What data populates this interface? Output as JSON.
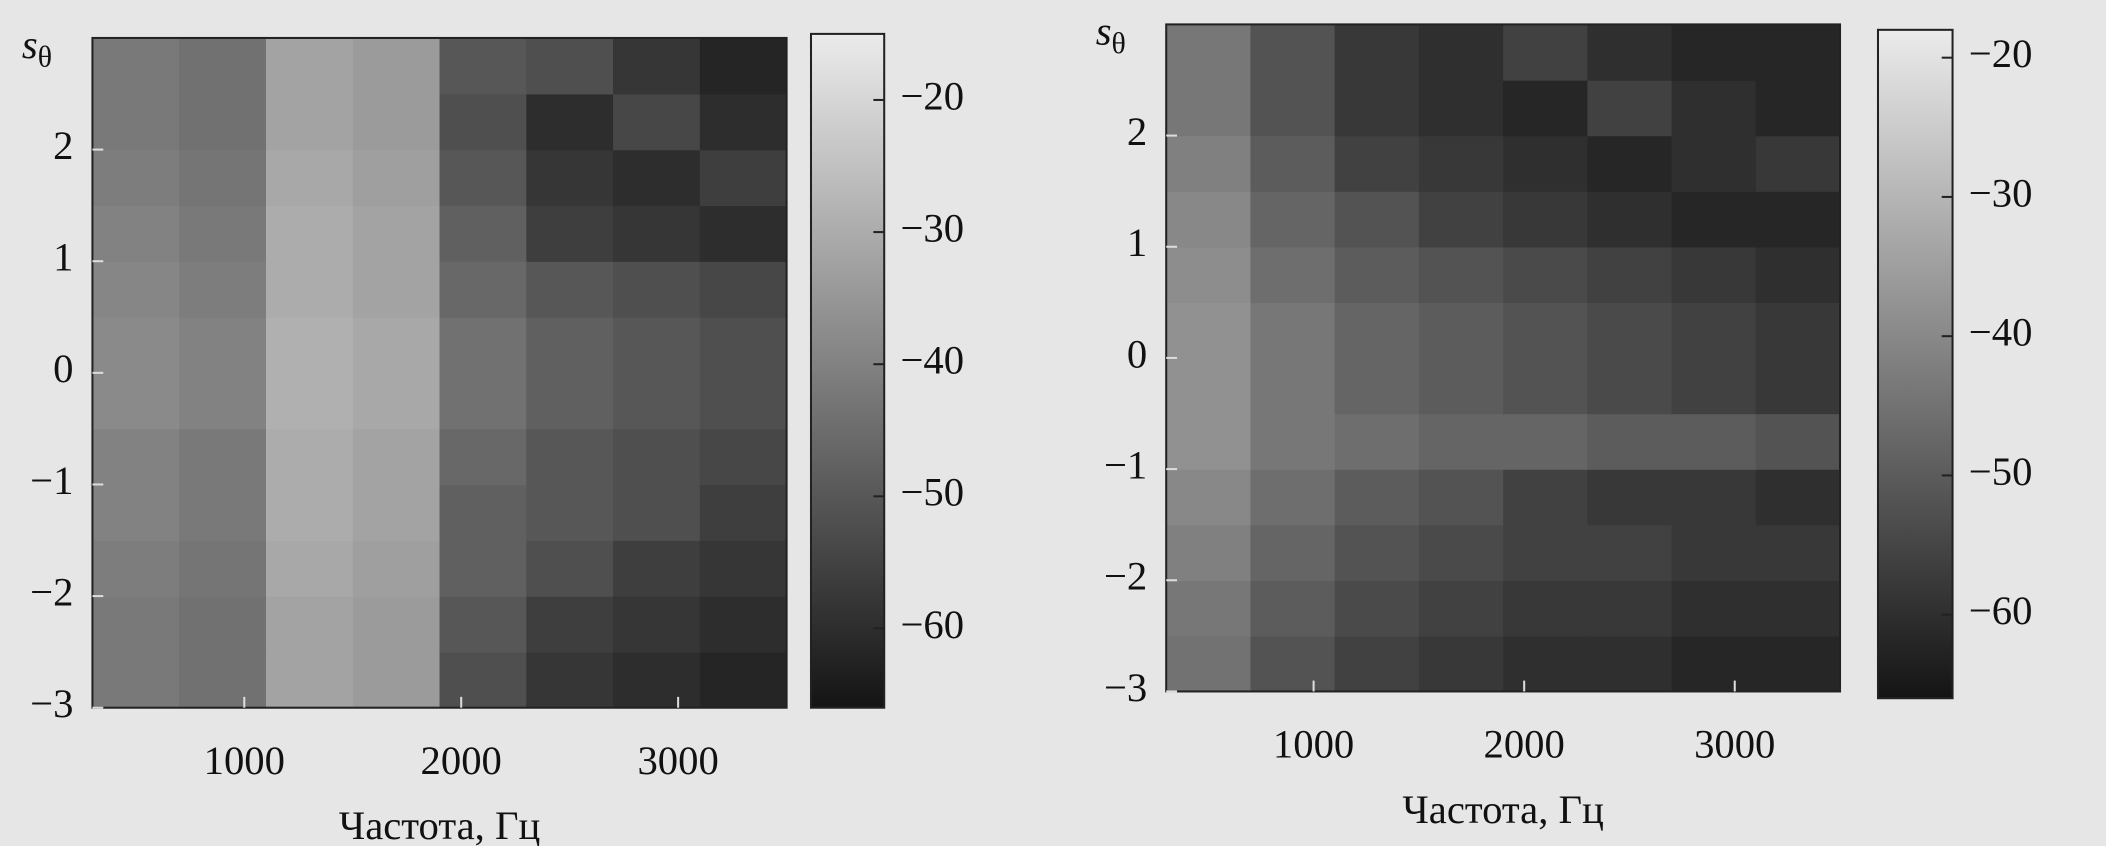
{
  "chart_data": [
    {
      "type": "heatmap",
      "x_label": "Частота, Гц",
      "y_label": {
        "base": "s",
        "subscript": "θ"
      },
      "x": [
        500,
        900,
        1300,
        1700,
        2100,
        2500,
        2900,
        3300
      ],
      "y": [
        -2.75,
        -2.25,
        -1.75,
        -1.25,
        -0.75,
        -0.25,
        0.25,
        0.75,
        1.25,
        1.75,
        2.25,
        2.75
      ],
      "values": [
        [
          -42,
          -44,
          -32,
          -34,
          -52,
          -58,
          -60,
          -62
        ],
        [
          -42,
          -44,
          -32,
          -34,
          -50,
          -56,
          -58,
          -60
        ],
        [
          -41,
          -43,
          -31,
          -33,
          -48,
          -52,
          -56,
          -58
        ],
        [
          -40,
          -42,
          -30,
          -32,
          -48,
          -50,
          -52,
          -56
        ],
        [
          -40,
          -42,
          -30,
          -32,
          -46,
          -50,
          -52,
          -54
        ],
        [
          -38,
          -40,
          -29,
          -31,
          -44,
          -48,
          -50,
          -52
        ],
        [
          -38,
          -40,
          -29,
          -31,
          -44,
          -48,
          -50,
          -52
        ],
        [
          -39,
          -41,
          -30,
          -32,
          -46,
          -50,
          -52,
          -54
        ],
        [
          -40,
          -42,
          -30,
          -32,
          -48,
          -56,
          -58,
          -60
        ],
        [
          -41,
          -43,
          -31,
          -33,
          -50,
          -58,
          -60,
          -56
        ],
        [
          -42,
          -44,
          -32,
          -34,
          -52,
          -60,
          -54,
          -60
        ],
        [
          -42,
          -44,
          -32,
          -34,
          -50,
          -52,
          -58,
          -62
        ]
      ],
      "xlim": [
        300,
        3500
      ],
      "ylim": [
        -3,
        3
      ],
      "zlim": [
        -66,
        -15
      ],
      "xticks": [
        1000,
        2000,
        3000
      ],
      "yticks": [
        {
          "value": -3,
          "label": "−3"
        },
        {
          "value": -2,
          "label": "−2"
        },
        {
          "value": -1,
          "label": "−1"
        },
        0,
        1,
        2
      ],
      "zticks": [
        {
          "value": -20,
          "label": "−20"
        },
        {
          "value": -30,
          "label": "−30"
        },
        {
          "value": -40,
          "label": "−40"
        },
        {
          "value": -50,
          "label": "−50"
        },
        {
          "value": -60,
          "label": "−60"
        }
      ]
    },
    {
      "type": "heatmap",
      "x_label": "Частота, Гц",
      "y_label": {
        "base": "s",
        "subscript": "θ"
      },
      "x": [
        500,
        900,
        1300,
        1700,
        2100,
        2500,
        2900,
        3300
      ],
      "y": [
        -2.75,
        -2.25,
        -1.75,
        -1.25,
        -0.75,
        -0.25,
        0.25,
        0.75,
        1.25,
        1.75,
        2.25,
        2.75
      ],
      "values": [
        [
          -45,
          -52,
          -56,
          -58,
          -60,
          -60,
          -62,
          -62
        ],
        [
          -44,
          -50,
          -54,
          -56,
          -58,
          -58,
          -60,
          -60
        ],
        [
          -42,
          -48,
          -52,
          -54,
          -56,
          -56,
          -58,
          -58
        ],
        [
          -40,
          -46,
          -50,
          -52,
          -56,
          -58,
          -58,
          -60
        ],
        [
          -38,
          -44,
          -46,
          -48,
          -48,
          -50,
          -50,
          -52
        ],
        [
          -38,
          -44,
          -48,
          -50,
          -52,
          -54,
          -56,
          -58
        ],
        [
          -38,
          -44,
          -48,
          -50,
          -52,
          -54,
          -56,
          -58
        ],
        [
          -39,
          -46,
          -50,
          -52,
          -54,
          -56,
          -58,
          -60
        ],
        [
          -40,
          -48,
          -52,
          -56,
          -58,
          -60,
          -62,
          -62
        ],
        [
          -42,
          -50,
          -56,
          -58,
          -60,
          -62,
          -60,
          -58
        ],
        [
          -44,
          -52,
          -58,
          -60,
          -62,
          -56,
          -60,
          -62
        ],
        [
          -44,
          -52,
          -58,
          -60,
          -56,
          -60,
          -62,
          -62
        ]
      ],
      "xlim": [
        300,
        3500
      ],
      "ylim": [
        -3,
        3
      ],
      "zlim": [
        -66,
        -18
      ],
      "xticks": [
        1000,
        2000,
        3000
      ],
      "yticks": [
        {
          "value": -3,
          "label": "−3"
        },
        {
          "value": -2,
          "label": "−2"
        },
        {
          "value": -1,
          "label": "−1"
        },
        0,
        1,
        2
      ],
      "zticks": [
        {
          "value": -20,
          "label": "−20"
        },
        {
          "value": -30,
          "label": "−30"
        },
        {
          "value": -40,
          "label": "−40"
        },
        {
          "value": -50,
          "label": "−50"
        },
        {
          "value": -60,
          "label": "−60"
        }
      ]
    }
  ]
}
